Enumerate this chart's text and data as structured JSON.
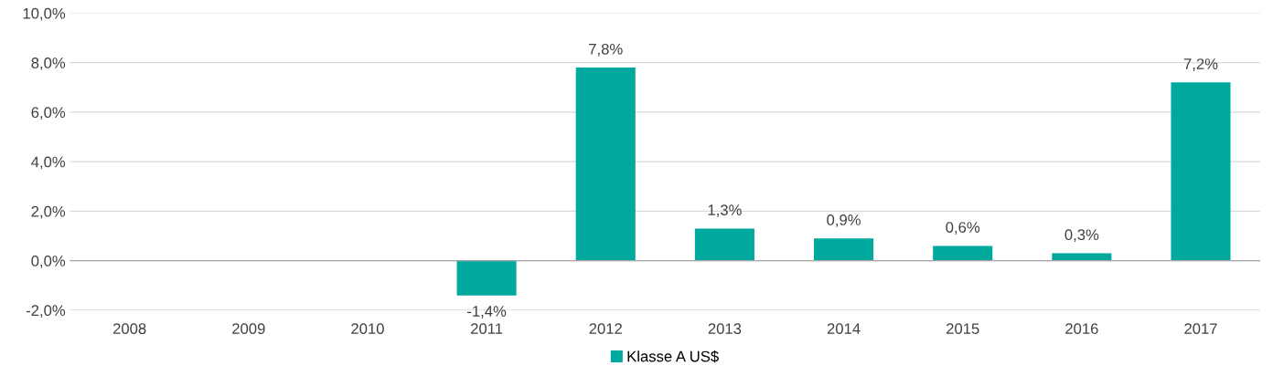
{
  "chart_data": {
    "type": "bar",
    "categories": [
      "2008",
      "2009",
      "2010",
      "2011",
      "2012",
      "2013",
      "2014",
      "2015",
      "2016",
      "2017"
    ],
    "series": [
      {
        "name": "Klasse A US$",
        "color": "#00a99d",
        "values": [
          null,
          null,
          null,
          -1.4,
          7.8,
          1.3,
          0.9,
          0.6,
          0.3,
          7.2
        ],
        "value_labels": [
          null,
          null,
          null,
          "-1,4%",
          "7,8%",
          "1,3%",
          "0,9%",
          "0,6%",
          "0,3%",
          "7,2%"
        ]
      }
    ],
    "ylim": [
      -2,
      10
    ],
    "yticks": [
      {
        "value": -2,
        "label": "-2,0%"
      },
      {
        "value": 0,
        "label": "0,0%"
      },
      {
        "value": 2,
        "label": "2,0%"
      },
      {
        "value": 4,
        "label": "4,0%"
      },
      {
        "value": 6,
        "label": "6,0%"
      },
      {
        "value": 8,
        "label": "8,0%"
      },
      {
        "value": 10,
        "label": "10,0%"
      }
    ],
    "grid": "y",
    "legend": "bottom"
  }
}
